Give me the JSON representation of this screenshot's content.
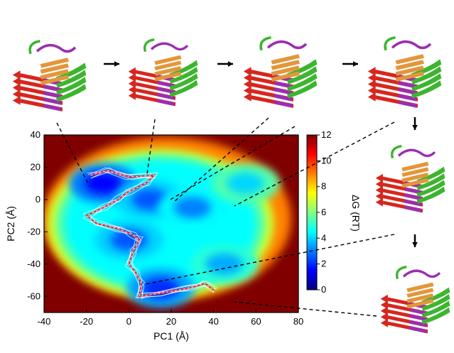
{
  "chart_data": {
    "type": "heatmap",
    "title": "",
    "xlabel": "PC1 (Å)",
    "ylabel": "PC2 (Å)",
    "xlim": [
      -40,
      80
    ],
    "ylim": [
      -70,
      40
    ],
    "xticks": [
      "-40",
      "-20",
      "0",
      "20",
      "40",
      "60",
      "80"
    ],
    "yticks": [
      "40",
      "20",
      "0",
      "-20",
      "-40",
      "-60"
    ],
    "colorbar": {
      "label": "ΔG (RT)",
      "range": [
        0,
        12
      ],
      "ticks": [
        "12",
        "10",
        "8",
        "6",
        "4",
        "2",
        "0"
      ],
      "colors": [
        "#00007f",
        "#0000ff",
        "#0080ff",
        "#00ffff",
        "#80ff80",
        "#ffff00",
        "#ff8000",
        "#ff0000",
        "#800000"
      ]
    },
    "basins": [
      {
        "x": -12,
        "y": 10,
        "dG": 1.5
      },
      {
        "x": 10,
        "y": 0,
        "dG": 2.5
      },
      {
        "x": 30,
        "y": -5,
        "dG": 3
      },
      {
        "x": 55,
        "y": 10,
        "dG": 4
      },
      {
        "x": 0,
        "y": -25,
        "dG": 2.5
      },
      {
        "x": 15,
        "y": -55,
        "dG": 2
      },
      {
        "x": 45,
        "y": -40,
        "dG": 3.5
      }
    ],
    "path": [
      {
        "x": -18,
        "y": 15
      },
      {
        "x": -10,
        "y": 18
      },
      {
        "x": 0,
        "y": 14
      },
      {
        "x": 12,
        "y": 15
      },
      {
        "x": 8,
        "y": 10
      },
      {
        "x": 0,
        "y": 5
      },
      {
        "x": -5,
        "y": 0
      },
      {
        "x": -12,
        "y": -5
      },
      {
        "x": -20,
        "y": -10
      },
      {
        "x": -15,
        "y": -15
      },
      {
        "x": -5,
        "y": -18
      },
      {
        "x": 2,
        "y": -22
      },
      {
        "x": 5,
        "y": -25
      },
      {
        "x": 2,
        "y": -32
      },
      {
        "x": 0,
        "y": -40
      },
      {
        "x": 3,
        "y": -45
      },
      {
        "x": 6,
        "y": -52
      },
      {
        "x": 5,
        "y": -60
      },
      {
        "x": 15,
        "y": -58
      },
      {
        "x": 28,
        "y": -55
      },
      {
        "x": 36,
        "y": -52
      },
      {
        "x": 40,
        "y": -56
      }
    ],
    "structure_links": [
      {
        "from": [
          -28,
          31
        ],
        "to": [
          -20,
          18
        ]
      },
      {
        "from": [
          -3,
          29
        ],
        "to": [
          -10,
          20
        ]
      },
      {
        "from": [
          4,
          47
        ],
        "to": [
          -15,
          -14
        ]
      },
      {
        "from": [
          12,
          47
        ],
        "to": [
          0,
          -25
        ]
      },
      {
        "from": [
          29,
          41
        ],
        "to": [
          15,
          5
        ]
      },
      {
        "from": [
          29,
          10
        ],
        "to": [
          30,
          -57
        ]
      },
      {
        "from": [
          36,
          0
        ],
        "to": [
          18,
          -45
        ]
      }
    ]
  }
}
